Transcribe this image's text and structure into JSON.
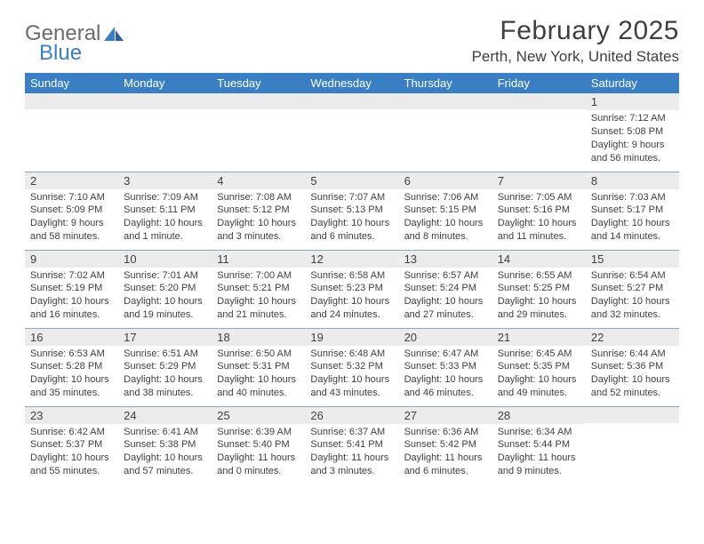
{
  "logo": {
    "text1": "General",
    "text2": "Blue"
  },
  "title": "February 2025",
  "location": "Perth, New York, United States",
  "colors": {
    "header_bg": "#3a7fc4",
    "header_fg": "#ffffff",
    "row_border": "#8aa9c7",
    "daynum_bg": "#ececec",
    "text": "#404040",
    "page_bg": "#ffffff"
  },
  "typography": {
    "title_fontsize": 30,
    "location_fontsize": 17,
    "dayheader_fontsize": 13,
    "daynum_fontsize": 13,
    "cell_fontsize": 11
  },
  "layout": {
    "columns": 7,
    "rows": 5,
    "start_day_index": 6
  },
  "day_headers": [
    "Sunday",
    "Monday",
    "Tuesday",
    "Wednesday",
    "Thursday",
    "Friday",
    "Saturday"
  ],
  "weeks": [
    [
      null,
      null,
      null,
      null,
      null,
      null,
      {
        "n": "1",
        "sunrise": "7:12 AM",
        "sunset": "5:08 PM",
        "daylight": "9 hours and 56 minutes."
      }
    ],
    [
      {
        "n": "2",
        "sunrise": "7:10 AM",
        "sunset": "5:09 PM",
        "daylight": "9 hours and 58 minutes."
      },
      {
        "n": "3",
        "sunrise": "7:09 AM",
        "sunset": "5:11 PM",
        "daylight": "10 hours and 1 minute."
      },
      {
        "n": "4",
        "sunrise": "7:08 AM",
        "sunset": "5:12 PM",
        "daylight": "10 hours and 3 minutes."
      },
      {
        "n": "5",
        "sunrise": "7:07 AM",
        "sunset": "5:13 PM",
        "daylight": "10 hours and 6 minutes."
      },
      {
        "n": "6",
        "sunrise": "7:06 AM",
        "sunset": "5:15 PM",
        "daylight": "10 hours and 8 minutes."
      },
      {
        "n": "7",
        "sunrise": "7:05 AM",
        "sunset": "5:16 PM",
        "daylight": "10 hours and 11 minutes."
      },
      {
        "n": "8",
        "sunrise": "7:03 AM",
        "sunset": "5:17 PM",
        "daylight": "10 hours and 14 minutes."
      }
    ],
    [
      {
        "n": "9",
        "sunrise": "7:02 AM",
        "sunset": "5:19 PM",
        "daylight": "10 hours and 16 minutes."
      },
      {
        "n": "10",
        "sunrise": "7:01 AM",
        "sunset": "5:20 PM",
        "daylight": "10 hours and 19 minutes."
      },
      {
        "n": "11",
        "sunrise": "7:00 AM",
        "sunset": "5:21 PM",
        "daylight": "10 hours and 21 minutes."
      },
      {
        "n": "12",
        "sunrise": "6:58 AM",
        "sunset": "5:23 PM",
        "daylight": "10 hours and 24 minutes."
      },
      {
        "n": "13",
        "sunrise": "6:57 AM",
        "sunset": "5:24 PM",
        "daylight": "10 hours and 27 minutes."
      },
      {
        "n": "14",
        "sunrise": "6:55 AM",
        "sunset": "5:25 PM",
        "daylight": "10 hours and 29 minutes."
      },
      {
        "n": "15",
        "sunrise": "6:54 AM",
        "sunset": "5:27 PM",
        "daylight": "10 hours and 32 minutes."
      }
    ],
    [
      {
        "n": "16",
        "sunrise": "6:53 AM",
        "sunset": "5:28 PM",
        "daylight": "10 hours and 35 minutes."
      },
      {
        "n": "17",
        "sunrise": "6:51 AM",
        "sunset": "5:29 PM",
        "daylight": "10 hours and 38 minutes."
      },
      {
        "n": "18",
        "sunrise": "6:50 AM",
        "sunset": "5:31 PM",
        "daylight": "10 hours and 40 minutes."
      },
      {
        "n": "19",
        "sunrise": "6:48 AM",
        "sunset": "5:32 PM",
        "daylight": "10 hours and 43 minutes."
      },
      {
        "n": "20",
        "sunrise": "6:47 AM",
        "sunset": "5:33 PM",
        "daylight": "10 hours and 46 minutes."
      },
      {
        "n": "21",
        "sunrise": "6:45 AM",
        "sunset": "5:35 PM",
        "daylight": "10 hours and 49 minutes."
      },
      {
        "n": "22",
        "sunrise": "6:44 AM",
        "sunset": "5:36 PM",
        "daylight": "10 hours and 52 minutes."
      }
    ],
    [
      {
        "n": "23",
        "sunrise": "6:42 AM",
        "sunset": "5:37 PM",
        "daylight": "10 hours and 55 minutes."
      },
      {
        "n": "24",
        "sunrise": "6:41 AM",
        "sunset": "5:38 PM",
        "daylight": "10 hours and 57 minutes."
      },
      {
        "n": "25",
        "sunrise": "6:39 AM",
        "sunset": "5:40 PM",
        "daylight": "11 hours and 0 minutes."
      },
      {
        "n": "26",
        "sunrise": "6:37 AM",
        "sunset": "5:41 PM",
        "daylight": "11 hours and 3 minutes."
      },
      {
        "n": "27",
        "sunrise": "6:36 AM",
        "sunset": "5:42 PM",
        "daylight": "11 hours and 6 minutes."
      },
      {
        "n": "28",
        "sunrise": "6:34 AM",
        "sunset": "5:44 PM",
        "daylight": "11 hours and 9 minutes."
      },
      null
    ]
  ],
  "labels": {
    "sunrise": "Sunrise:",
    "sunset": "Sunset:",
    "daylight": "Daylight:"
  }
}
